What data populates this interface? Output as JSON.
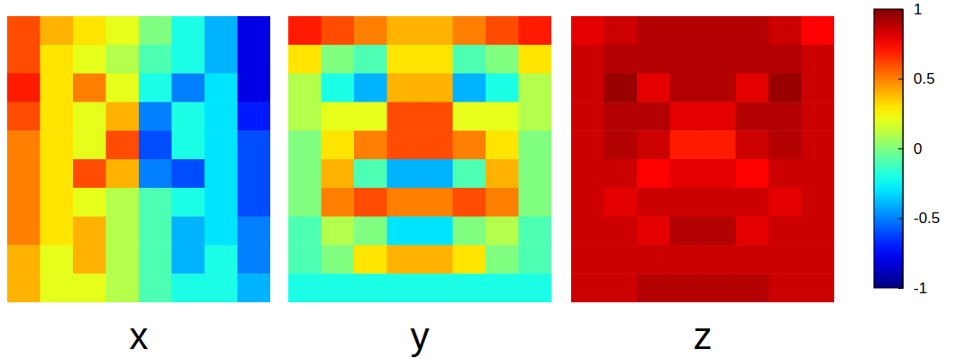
{
  "chart_data": {
    "type": "heatmap",
    "panels": [
      {
        "xlabel": "x",
        "values": [
          [
            0.6,
            0.4,
            0.3,
            0.2,
            0.0,
            -0.2,
            -0.4,
            -0.8
          ],
          [
            0.6,
            0.3,
            0.2,
            0.1,
            -0.1,
            -0.2,
            -0.4,
            -0.8
          ],
          [
            0.7,
            0.3,
            0.5,
            0.2,
            -0.2,
            -0.5,
            -0.3,
            -0.8
          ],
          [
            0.6,
            0.3,
            0.2,
            0.4,
            -0.5,
            -0.2,
            -0.3,
            -0.7
          ],
          [
            0.5,
            0.3,
            0.2,
            0.6,
            -0.6,
            -0.2,
            -0.3,
            -0.6
          ],
          [
            0.5,
            0.3,
            0.6,
            0.4,
            -0.5,
            -0.6,
            -0.3,
            -0.6
          ],
          [
            0.5,
            0.3,
            0.2,
            0.1,
            -0.1,
            -0.2,
            -0.3,
            -0.6
          ],
          [
            0.5,
            0.3,
            0.4,
            0.1,
            -0.1,
            -0.4,
            -0.3,
            -0.5
          ],
          [
            0.4,
            0.2,
            0.4,
            0.1,
            -0.1,
            -0.4,
            -0.2,
            -0.5
          ],
          [
            0.4,
            0.2,
            0.2,
            0.1,
            -0.1,
            -0.2,
            -0.2,
            -0.4
          ]
        ]
      },
      {
        "xlabel": "y",
        "values": [
          [
            0.7,
            0.6,
            0.5,
            0.4,
            0.4,
            0.5,
            0.6,
            0.7
          ],
          [
            0.3,
            0.0,
            -0.1,
            0.3,
            0.3,
            -0.1,
            0.0,
            0.3
          ],
          [
            0.1,
            -0.2,
            -0.4,
            0.4,
            0.4,
            -0.4,
            -0.2,
            0.1
          ],
          [
            0.1,
            0.2,
            0.2,
            0.6,
            0.6,
            0.2,
            0.2,
            0.1
          ],
          [
            0.0,
            0.3,
            0.5,
            0.6,
            0.6,
            0.5,
            0.3,
            0.0
          ],
          [
            0.0,
            0.4,
            -0.1,
            -0.4,
            -0.4,
            -0.1,
            0.4,
            0.0
          ],
          [
            0.0,
            0.5,
            0.6,
            0.5,
            0.5,
            0.6,
            0.5,
            0.0
          ],
          [
            -0.1,
            0.1,
            0.0,
            -0.3,
            -0.3,
            0.0,
            0.1,
            -0.1
          ],
          [
            -0.1,
            0.0,
            0.3,
            0.4,
            0.4,
            0.3,
            0.0,
            -0.1
          ],
          [
            -0.2,
            -0.2,
            -0.2,
            -0.2,
            -0.2,
            -0.2,
            -0.2,
            -0.2
          ]
        ]
      },
      {
        "xlabel": "z",
        "values": [
          [
            0.8,
            0.85,
            0.9,
            0.9,
            0.9,
            0.9,
            0.85,
            0.75
          ],
          [
            0.85,
            0.9,
            0.9,
            0.9,
            0.9,
            0.9,
            0.9,
            0.85
          ],
          [
            0.85,
            0.95,
            0.8,
            0.9,
            0.9,
            0.8,
            0.95,
            0.85
          ],
          [
            0.85,
            0.9,
            0.9,
            0.8,
            0.8,
            0.9,
            0.9,
            0.85
          ],
          [
            0.85,
            0.9,
            0.85,
            0.7,
            0.7,
            0.85,
            0.9,
            0.85
          ],
          [
            0.85,
            0.85,
            0.75,
            0.8,
            0.8,
            0.75,
            0.85,
            0.85
          ],
          [
            0.85,
            0.8,
            0.85,
            0.85,
            0.85,
            0.85,
            0.8,
            0.85
          ],
          [
            0.85,
            0.85,
            0.8,
            0.9,
            0.9,
            0.8,
            0.85,
            0.85
          ],
          [
            0.85,
            0.85,
            0.85,
            0.85,
            0.85,
            0.85,
            0.85,
            0.85
          ],
          [
            0.85,
            0.85,
            0.9,
            0.9,
            0.9,
            0.9,
            0.85,
            0.85
          ]
        ]
      }
    ],
    "colorbar": {
      "range": [
        -1,
        1
      ],
      "ticks": [
        1,
        0.5,
        0,
        -0.5,
        -1
      ]
    }
  }
}
